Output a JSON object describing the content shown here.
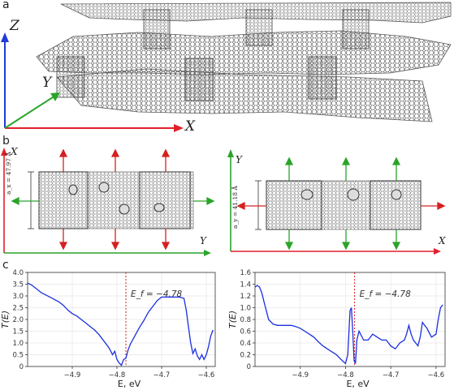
{
  "panels": {
    "a": {
      "letter": "a",
      "axes": {
        "x": "X",
        "y": "Y",
        "z": "Z"
      }
    },
    "b": {
      "letter": "b",
      "left": {
        "axis_vertical": "X",
        "axis_horizontal": "Y",
        "dimension_label": "a_x = 47.97 Å"
      },
      "right": {
        "axis_vertical": "Y",
        "axis_horizontal": "X",
        "dimension_label": "a_y = 41.18 Å"
      },
      "arrow_colors": {
        "red": "#d62020",
        "green": "#2aa02a",
        "blue": "#2030d0"
      }
    },
    "c": {
      "letter": "c"
    }
  },
  "chart_data": [
    {
      "type": "line",
      "ylabel": "T(E)",
      "xlabel": "E, eV",
      "xlim": [
        -5.0,
        -4.58
      ],
      "ylim": [
        0,
        4.0
      ],
      "xticks": [
        -4.9,
        -4.8,
        -4.7,
        -4.6
      ],
      "xtick_labels": [
        "−4.9",
        "−4.8",
        "−4.7",
        "−4.6"
      ],
      "yticks": [
        0,
        0.5,
        1.0,
        1.5,
        2.0,
        2.5,
        3.0,
        3.5,
        4.0
      ],
      "ytick_labels": [
        "0",
        "0.5",
        "1.0",
        "1.5",
        "2.0",
        "2.5",
        "3.0",
        "3.5",
        "4.0"
      ],
      "grid": true,
      "annotation": "E_f = −4.78",
      "fermi_level": -4.78,
      "series": [
        {
          "color": "#1a2fe0",
          "x": [
            -5.0,
            -4.99,
            -4.98,
            -4.97,
            -4.96,
            -4.95,
            -4.94,
            -4.93,
            -4.92,
            -4.91,
            -4.9,
            -4.89,
            -4.88,
            -4.87,
            -4.86,
            -4.85,
            -4.84,
            -4.83,
            -4.82,
            -4.815,
            -4.81,
            -4.805,
            -4.8,
            -4.795,
            -4.79,
            -4.785,
            -4.78,
            -4.775,
            -4.77,
            -4.76,
            -4.75,
            -4.74,
            -4.73,
            -4.72,
            -4.71,
            -4.7,
            -4.69,
            -4.68,
            -4.67,
            -4.66,
            -4.65,
            -4.645,
            -4.64,
            -4.635,
            -4.63,
            -4.625,
            -4.62,
            -4.615,
            -4.61,
            -4.605,
            -4.6,
            -4.595,
            -4.59,
            -4.585
          ],
          "y": [
            3.55,
            3.45,
            3.3,
            3.15,
            3.05,
            2.95,
            2.85,
            2.75,
            2.6,
            2.4,
            2.25,
            2.15,
            2.0,
            1.85,
            1.7,
            1.55,
            1.35,
            1.1,
            0.85,
            0.7,
            0.5,
            0.65,
            0.3,
            0.15,
            0.05,
            0.3,
            0.35,
            0.7,
            0.95,
            1.3,
            1.65,
            1.95,
            2.3,
            2.55,
            2.8,
            2.95,
            2.95,
            2.95,
            2.95,
            2.95,
            2.9,
            2.4,
            1.7,
            1.0,
            0.55,
            0.75,
            0.45,
            0.3,
            0.5,
            0.3,
            0.5,
            0.85,
            1.3,
            1.55
          ]
        }
      ]
    },
    {
      "type": "line",
      "ylabel": "T(E)",
      "xlabel": "E, eV",
      "xlim": [
        -5.0,
        -4.58
      ],
      "ylim": [
        0,
        1.6
      ],
      "xticks": [
        -4.9,
        -4.8,
        -4.7,
        -4.6
      ],
      "xtick_labels": [
        "−4.9",
        "−4.8",
        "−4.7",
        "−4.6"
      ],
      "yticks": [
        0,
        0.2,
        0.4,
        0.6,
        0.8,
        1.0,
        1.2,
        1.4,
        1.6
      ],
      "ytick_labels": [
        "0",
        "0.2",
        "0.4",
        "0.6",
        "0.8",
        "1.0",
        "1.2",
        "1.4",
        "1.6"
      ],
      "grid": true,
      "annotation": "E_f = −4.78",
      "fermi_level": -4.78,
      "series": [
        {
          "color": "#1a2fe0",
          "x": [
            -5.0,
            -4.995,
            -4.99,
            -4.985,
            -4.98,
            -4.975,
            -4.97,
            -4.96,
            -4.95,
            -4.94,
            -4.93,
            -4.92,
            -4.91,
            -4.9,
            -4.89,
            -4.88,
            -4.87,
            -4.86,
            -4.85,
            -4.84,
            -4.83,
            -4.82,
            -4.81,
            -4.8,
            -4.795,
            -4.79,
            -4.787,
            -4.784,
            -4.781,
            -4.778,
            -4.775,
            -4.77,
            -4.76,
            -4.75,
            -4.74,
            -4.73,
            -4.72,
            -4.71,
            -4.7,
            -4.69,
            -4.68,
            -4.67,
            -4.665,
            -4.66,
            -4.655,
            -4.65,
            -4.645,
            -4.64,
            -4.635,
            -4.63,
            -4.62,
            -4.61,
            -4.6,
            -4.595,
            -4.59,
            -4.585
          ],
          "y": [
            1.35,
            1.38,
            1.35,
            1.25,
            1.1,
            0.95,
            0.8,
            0.72,
            0.7,
            0.7,
            0.7,
            0.7,
            0.68,
            0.65,
            0.6,
            0.55,
            0.5,
            0.42,
            0.35,
            0.3,
            0.25,
            0.2,
            0.12,
            0.05,
            0.2,
            0.95,
            1.0,
            0.6,
            0.1,
            0.05,
            0.45,
            0.6,
            0.45,
            0.45,
            0.55,
            0.5,
            0.45,
            0.45,
            0.35,
            0.3,
            0.4,
            0.45,
            0.55,
            0.7,
            0.55,
            0.45,
            0.4,
            0.35,
            0.5,
            0.75,
            0.65,
            0.5,
            0.55,
            0.8,
            1.0,
            1.05
          ]
        }
      ]
    }
  ]
}
